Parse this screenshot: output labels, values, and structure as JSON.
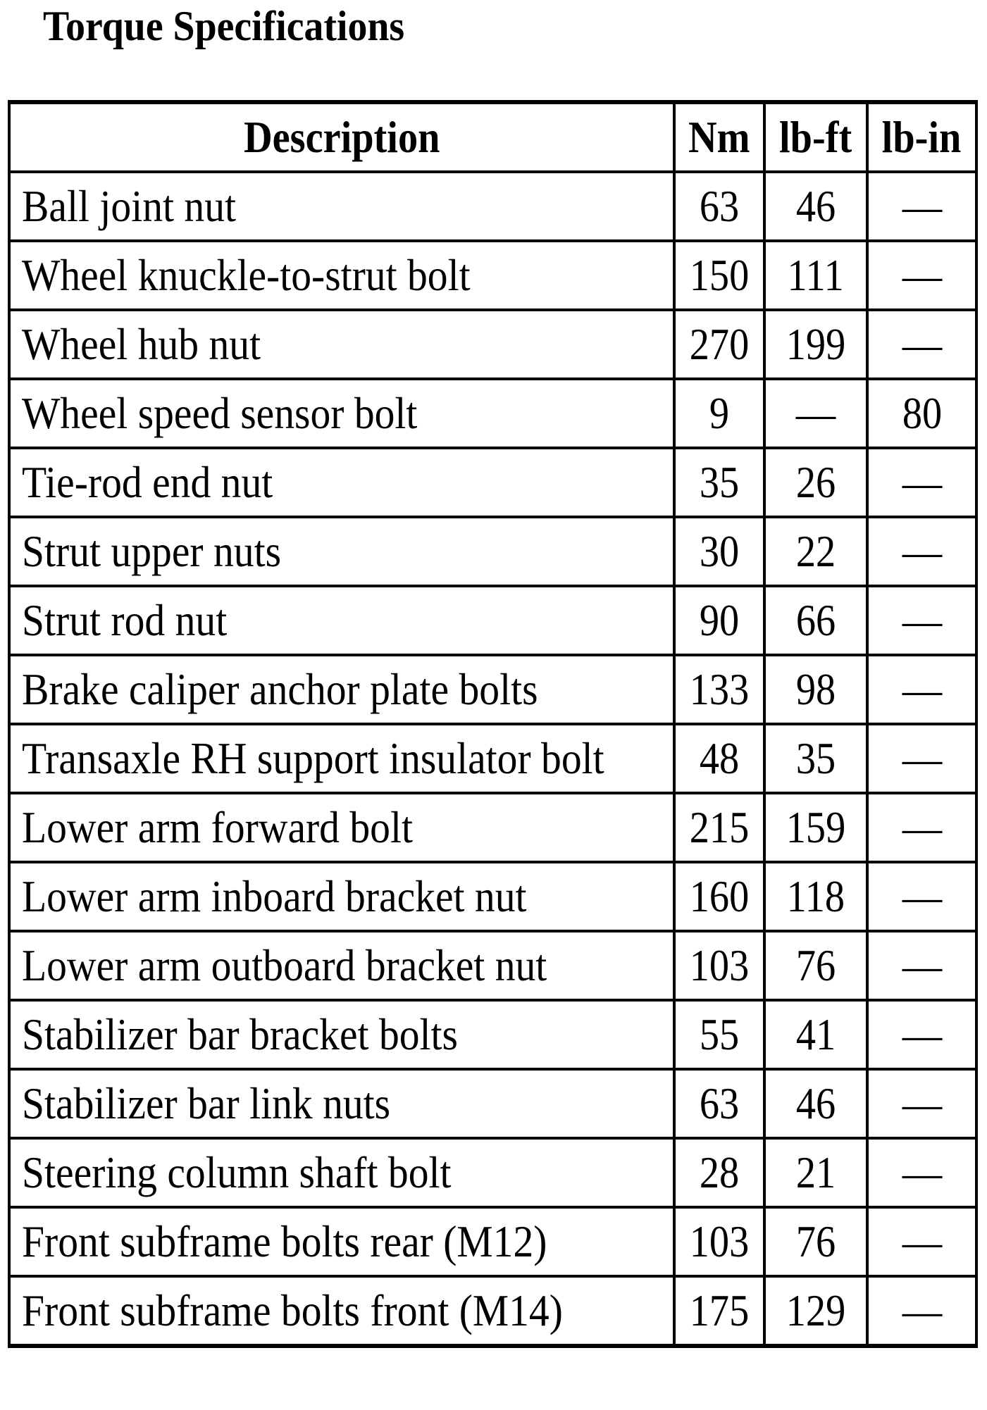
{
  "title": "Torque Specifications",
  "table": {
    "headers": [
      "Description",
      "Nm",
      "lb-ft",
      "lb-in"
    ],
    "rows": [
      [
        "Ball joint nut",
        "63",
        "46",
        "—"
      ],
      [
        "Wheel knuckle-to-strut bolt",
        "150",
        "111",
        "—"
      ],
      [
        "Wheel hub nut",
        "270",
        "199",
        "—"
      ],
      [
        "Wheel speed sensor bolt",
        "9",
        "—",
        "80"
      ],
      [
        "Tie-rod end nut",
        "35",
        "26",
        "—"
      ],
      [
        "Strut upper nuts",
        "30",
        "22",
        "—"
      ],
      [
        "Strut rod nut",
        "90",
        "66",
        "—"
      ],
      [
        "Brake caliper anchor plate bolts",
        "133",
        "98",
        "—"
      ],
      [
        "Transaxle RH support insulator bolt",
        "48",
        "35",
        "—"
      ],
      [
        "Lower arm forward bolt",
        "215",
        "159",
        "—"
      ],
      [
        "Lower arm inboard bracket nut",
        "160",
        "118",
        "—"
      ],
      [
        "Lower arm outboard bracket nut",
        "103",
        "76",
        "—"
      ],
      [
        "Stabilizer bar bracket bolts",
        "55",
        "41",
        "—"
      ],
      [
        "Stabilizer bar link nuts",
        "63",
        "46",
        "—"
      ],
      [
        "Steering column shaft bolt",
        "28",
        "21",
        "—"
      ],
      [
        "Front subframe bolts rear (M12)",
        "103",
        "76",
        "—"
      ],
      [
        "Front subframe bolts front (M14)",
        "175",
        "129",
        "—"
      ]
    ]
  }
}
